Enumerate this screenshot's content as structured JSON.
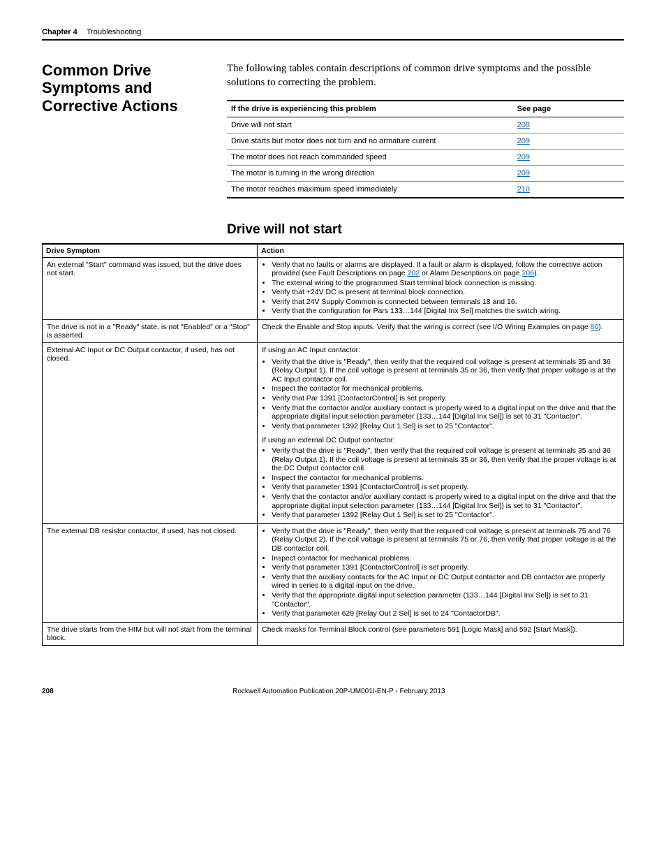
{
  "header": {
    "chapter": "Chapter 4",
    "section": "Troubleshooting"
  },
  "title": "Common Drive Symptoms and Corrective Actions",
  "intro": "The following tables contain descriptions of common drive symptoms and the possible solutions to correcting the problem.",
  "nav_table": {
    "headers": [
      "If the drive is experiencing this problem",
      "See page"
    ],
    "rows": [
      {
        "problem": "Drive will not start",
        "page": "208"
      },
      {
        "problem": "Drive starts but motor does not turn and no armature current",
        "page": "209"
      },
      {
        "problem": "The motor does not reach commanded speed",
        "page": "209"
      },
      {
        "problem": "The motor is turning in the wrong direction",
        "page": "209"
      },
      {
        "problem": "The motor reaches maximum speed immediately",
        "page": "210"
      }
    ]
  },
  "subheading": "Drive will not start",
  "main_table": {
    "headers": [
      "Drive Symptom",
      "Action"
    ],
    "rows": [
      {
        "symptom": "An external \"Start\" command was issued, but the drive does not start.",
        "action_items": [
          {
            "text": "Verify that no faults or alarms are displayed. If a fault or alarm is displayed, follow the corrective action provided (see Fault Descriptions on page ",
            "link1": "202",
            "mid": " or Alarm Descriptions on page ",
            "link2": "206",
            "tail": ")."
          },
          {
            "text": "The external wiring to the programmed Start terminal block connection is missing."
          },
          {
            "text": "Verify that +24V DC is present at terminal block connection."
          },
          {
            "text": "Verify that 24V Supply Common is connected between terminals 18 and 16."
          },
          {
            "text": "Verify that the configuration for Pars 133…144 [Digital Inx Sel] matches the switch wiring."
          }
        ]
      },
      {
        "symptom": "The drive is not in a \"Ready\" state, is not \"Enabled\" or a \"Stop\" is asserted.",
        "action_plain": {
          "pre": "Check the Enable and Stop inputs. Verify that the wiring is correct (see I/O Wiring Examples on page ",
          "link": "80",
          "post": ")."
        }
      },
      {
        "symptom": "External AC Input or DC Output contactor, if used, has not closed.",
        "action_groups": [
          {
            "lead": "If using an AC Input contactor:",
            "items": [
              "Verify that the drive is \"Ready\", then verify that the required coil voltage is present at terminals 35 and 36 (Relay Output 1). If the coil voltage is present at terminals 35 or 36, then verify that proper voltage is at the AC Input contactor coil.",
              "Inspect the contactor for mechanical problems.",
              "Verify that Par 1391 [ContactorControl] is set properly.",
              "Verify that the contactor and/or auxiliary contact is properly wired to a digital input on the drive and that the appropriate digital input selection parameter (133…144 [Digital Inx Sel]) is set to 31 \"Contactor\".",
              "Verify that parameter 1392 [Relay Out 1 Sel] is set to 25 \"Contactor\"."
            ]
          },
          {
            "lead": "If using an external DC Output contactor:",
            "items": [
              "Verify that the drive is \"Ready\", then verify that the required coil voltage is present at terminals 35 and 36 (Relay Output 1). If the coil voltage is present at terminals 35 or 36, then verify that the proper voltage is at the DC Output contactor coil.",
              "Inspect the contactor for mechanical problems.",
              "Verify that parameter 1391 [ContactorControl] is set properly.",
              "Verify that the contactor and/or auxiliary contact is properly wired to a digital input on the drive and that the appropriate digital input selection parameter (133…144 [Digital Inx Sel]) is set to 31 \"Contactor\".",
              "Verify that parameter 1392 [Relay Out 1 Sel] is set to 25 \"Contactor\"."
            ]
          }
        ]
      },
      {
        "symptom": "The external DB resistor contactor, if used, has not closed.",
        "action_items": [
          {
            "text": "Verify that the drive is \"Ready\", then verify that the required coil voltage is present at terminals 75 and 76 (Relay Output 2). If the coil voltage is present at terminals 75 or 76, then verify that proper voltage is at the DB contactor coil."
          },
          {
            "text": "Inspect contactor for mechanical problems."
          },
          {
            "text": "Verify that parameter 1391 [ContactorControl] is set properly."
          },
          {
            "text": "Verify that the auxiliary contacts for the AC Input or DC Output contactor and DB contactor are properly wired in series to a digital input on the drive."
          },
          {
            "text": "Verify that the appropriate digital input selection parameter (133…144 [Digital Inx Sel]) is set to 31 \"Contactor\"."
          },
          {
            "text": "Verify that parameter 629 [Relay Out 2 Sel] is set to 24 \"ContactorDB\"."
          }
        ]
      },
      {
        "symptom": "The drive starts from the HIM but will not start from the terminal block.",
        "action_plain_text": "Check masks for Terminal Block control (see parameters 591 [Logic Mask] and 592 [Start Mask])."
      }
    ]
  },
  "footer": {
    "page": "208",
    "pub": "Rockwell Automation Publication 20P-UM001I-EN-P - February 2013"
  }
}
